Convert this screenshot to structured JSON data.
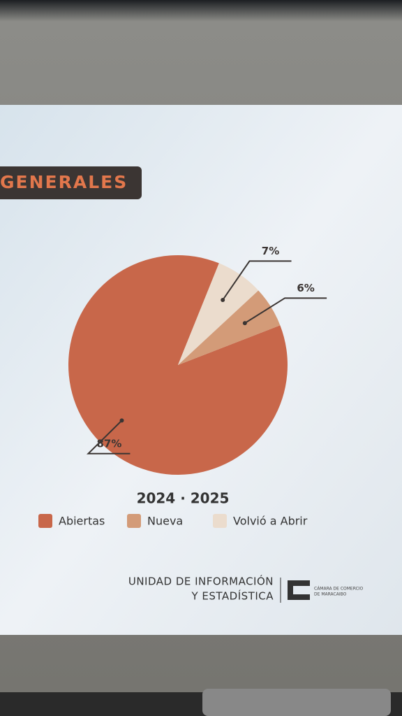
{
  "header": {
    "title": "GENERALES"
  },
  "chart_data": {
    "type": "pie",
    "subtitle": "2024 · 2025",
    "categories": [
      "Abiertas",
      "Nueva",
      "Volvió a Abrir"
    ],
    "values": [
      87,
      6,
      7
    ],
    "value_labels": [
      "87%",
      "6%",
      "7%"
    ],
    "colors": [
      "#c8674a",
      "#d39b78",
      "#ebdccd"
    ]
  },
  "footer": {
    "unit": [
      "UNIDAD DE INFORMACIÓN",
      "Y ESTADÍSTICA"
    ],
    "org": [
      "CÁMARA DE COMERCIO",
      "DE MARACAIBO"
    ]
  }
}
